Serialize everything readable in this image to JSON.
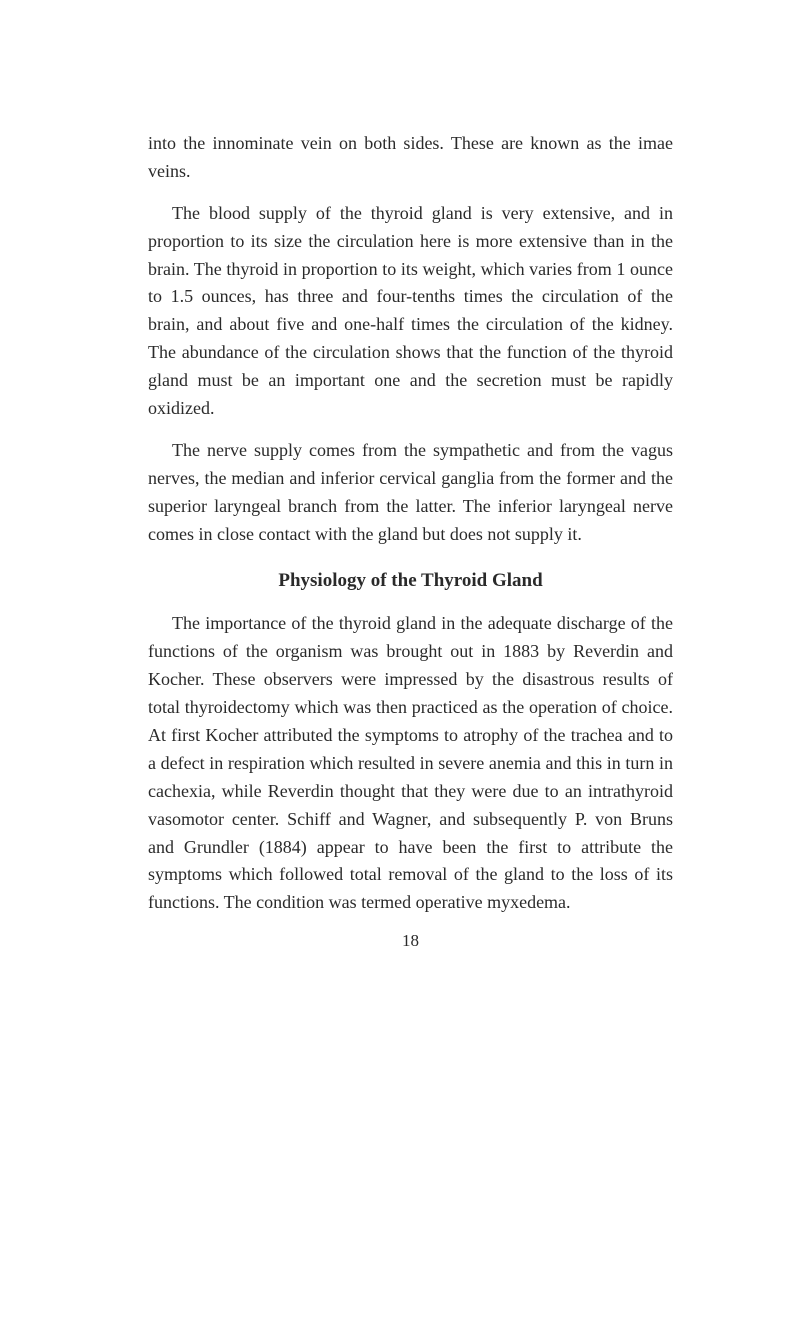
{
  "page": {
    "background_color": "#ffffff",
    "text_color": "#2a2a2a",
    "font_family": "Georgia, 'Times New Roman', serif",
    "body_fontsize": 18,
    "heading_fontsize": 19,
    "line_height": 1.55,
    "page_number": "18"
  },
  "paragraphs": {
    "p1": "into the innominate vein on both sides. These are known as the imae veins.",
    "p2": "The blood supply of the thyroid gland is very ex­tensive, and in proportion to its size the circulation here is more extensive than in the brain. The thyroid in proportion to its weight, which varies from 1 ounce to 1.5 ounces, has three and four-tenths times the cir­culation of the brain, and about five and one-half times the circulation of the kidney. The abundance of the circulation shows that the function of the thyroid gland must be an important one and the secretion must be rapidly oxidized.",
    "p3": "The nerve supply comes from the sympathetic and from the vagus nerves, the median and inferior cervical ganglia from the former and the superior laryngeal branch from the latter. The inferior laryngeal nerve comes in close contact with the gland but does not supply it.",
    "heading": "Physiology of the Thyroid Gland",
    "p4": "The importance of the thyroid gland in the adequate discharge of the functions of the organism was brought out in 1883 by Reverdin and Kocher. These observers were impressed by the disastrous results of total thyroid­ectomy which was then practiced as the operation of choice. At first Kocher attributed the symptoms to atrophy of the trachea and to a defect in respiration which resulted in severe anemia and this in turn in cachexia, while Reverdin thought that they were due to an intrathyroid vasomotor center. Schiff and Wagner, and subsequently P. von Bruns and Grundler (1884) appear to have been the first to attribute the symptoms which followed total removal of the gland to the loss of its functions. The condition was termed operative myxedema."
  }
}
